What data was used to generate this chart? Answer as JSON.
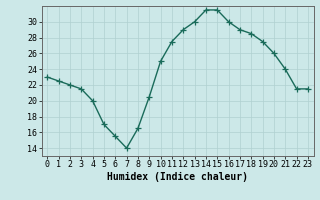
{
  "x": [
    0,
    1,
    2,
    3,
    4,
    5,
    6,
    7,
    8,
    9,
    10,
    11,
    12,
    13,
    14,
    15,
    16,
    17,
    18,
    19,
    20,
    21,
    22,
    23
  ],
  "y": [
    23.0,
    22.5,
    22.0,
    21.5,
    20.0,
    17.0,
    15.5,
    14.0,
    16.5,
    20.5,
    25.0,
    27.5,
    29.0,
    30.0,
    31.5,
    31.5,
    30.0,
    29.0,
    28.5,
    27.5,
    26.0,
    24.0,
    21.5,
    21.5
  ],
  "line_color": "#1a6b5a",
  "marker": "+",
  "markersize": 4,
  "linewidth": 1.0,
  "bg_color": "#cce8e8",
  "grid_color": "#b0d0d0",
  "xlabel": "Humidex (Indice chaleur)",
  "xlabel_fontsize": 7,
  "ylabel_ticks": [
    14,
    16,
    18,
    20,
    22,
    24,
    26,
    28,
    30
  ],
  "ylim": [
    13.0,
    32.0
  ],
  "xlim": [
    -0.5,
    23.5
  ],
  "xtick_labels": [
    "0",
    "1",
    "2",
    "3",
    "4",
    "5",
    "6",
    "7",
    "8",
    "9",
    "10",
    "11",
    "12",
    "13",
    "14",
    "15",
    "16",
    "17",
    "18",
    "19",
    "20",
    "21",
    "22",
    "23"
  ],
  "tick_fontsize": 6
}
